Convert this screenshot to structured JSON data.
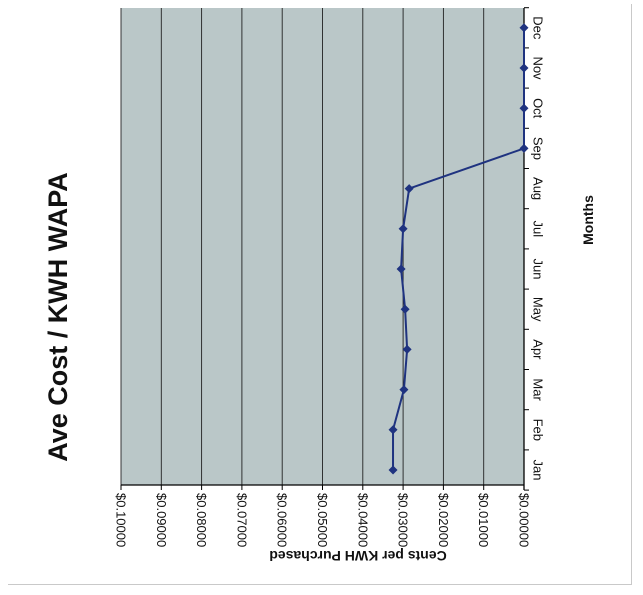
{
  "chart_data": {
    "type": "line",
    "orientation": "rotated-90-clockwise",
    "title": "Ave Cost / KWH WAPA",
    "xlabel": "Months",
    "ylabel": "Cents per KWH Purchased",
    "categories": [
      "Jan",
      "Feb",
      "Mar",
      "Apr",
      "May",
      "Jun",
      "Jul",
      "Aug",
      "Sep",
      "Oct",
      "Nov",
      "Dec"
    ],
    "ylim": [
      0,
      0.1
    ],
    "yticks": [
      "$0.00000",
      "$0.01000",
      "$0.02000",
      "$0.03000",
      "$0.04000",
      "$0.05000",
      "$0.06000",
      "$0.07000",
      "$0.08000",
      "$0.09000",
      "$0.10000"
    ],
    "series": [
      {
        "values": [
          0.0325,
          0.0325,
          0.0298,
          0.029,
          0.0295,
          0.0305,
          0.03,
          0.0285,
          0,
          0,
          0,
          0
        ]
      }
    ],
    "grid": true,
    "legend": "none",
    "colors": {
      "line": "#1f3380",
      "plot_bg": "#bac7c8",
      "grid": "#222222"
    }
  }
}
